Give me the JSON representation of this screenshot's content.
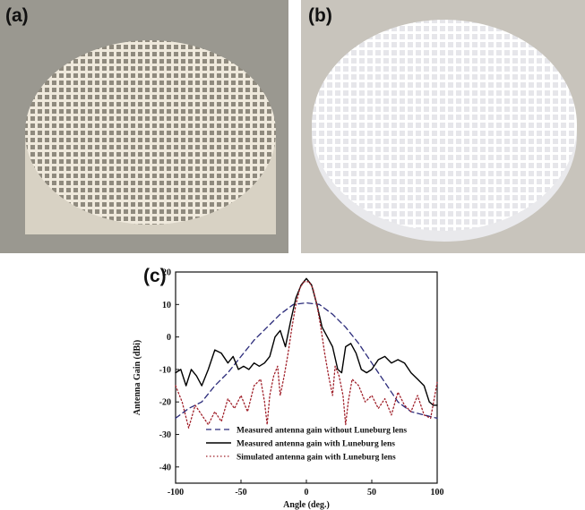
{
  "panels": {
    "a": {
      "label": "(a)"
    },
    "b": {
      "label": "(b)"
    },
    "c": {
      "label": "(c)"
    }
  },
  "colors": {
    "photo_a_background": "#9a9890",
    "photo_a_lattice": "#efe9dc",
    "photo_b_background": "#c8c4bc",
    "photo_b_lattice": "#ffffff",
    "measured_without_lens": "#2b2b7a",
    "measured_with_lens": "#000000",
    "simulated_with_lens": "#a0202a"
  },
  "chart_data": {
    "type": "line",
    "xlabel": "Angle (deg.)",
    "ylabel": "Antenna Gain (dBi)",
    "xlim": [
      -100,
      100
    ],
    "ylim": [
      -45,
      20
    ],
    "x_ticks": [
      -100,
      -50,
      0,
      50,
      100
    ],
    "y_ticks": [
      20,
      10,
      0,
      -10,
      -20,
      -30,
      -40
    ],
    "legend_position": "bottom-center",
    "series": [
      {
        "name": "Measured antenna gain without Luneburg lens",
        "style": "dashed",
        "x": [
          -100,
          -90,
          -80,
          -70,
          -60,
          -50,
          -40,
          -30,
          -20,
          -10,
          0,
          10,
          20,
          30,
          40,
          50,
          60,
          70,
          80,
          90,
          100
        ],
        "y": [
          -25,
          -22,
          -20,
          -15,
          -11,
          -6,
          -1,
          3,
          7,
          10,
          10.5,
          10,
          7,
          3,
          -2,
          -8,
          -14,
          -20,
          -23,
          -24,
          -25
        ]
      },
      {
        "name": "Measured antenna gain with Luneburg lens",
        "style": "solid",
        "x": [
          -100,
          -96,
          -92,
          -88,
          -84,
          -80,
          -75,
          -70,
          -65,
          -60,
          -56,
          -52,
          -48,
          -44,
          -40,
          -36,
          -32,
          -28,
          -24,
          -20,
          -16,
          -12,
          -8,
          -4,
          0,
          4,
          8,
          12,
          16,
          20,
          24,
          27,
          30,
          34,
          38,
          42,
          46,
          50,
          55,
          60,
          65,
          70,
          75,
          80,
          85,
          90,
          94,
          97,
          100
        ],
        "y": [
          -11,
          -10,
          -15,
          -10,
          -12,
          -15,
          -10,
          -4,
          -5,
          -8,
          -6,
          -10,
          -9,
          -10,
          -8,
          -9,
          -8,
          -6,
          0,
          2,
          -3,
          5,
          12,
          16,
          18,
          16,
          10,
          3,
          0,
          -3,
          -10,
          -11,
          -3,
          -2,
          -5,
          -10,
          -11,
          -10,
          -7,
          -6,
          -8,
          -7,
          -8,
          -11,
          -13,
          -15,
          -20,
          -21,
          -21
        ]
      },
      {
        "name": "Simulated antenna gain with Luneburg lens",
        "style": "dotted",
        "x": [
          -100,
          -95,
          -90,
          -85,
          -80,
          -75,
          -70,
          -65,
          -60,
          -55,
          -50,
          -45,
          -40,
          -35,
          -32,
          -30,
          -28,
          -25,
          -22,
          -20,
          -17,
          -14,
          -11,
          -8,
          -5,
          -2,
          0,
          2,
          5,
          8,
          11,
          14,
          17,
          20,
          22,
          25,
          28,
          30,
          32,
          35,
          40,
          45,
          50,
          55,
          60,
          65,
          70,
          75,
          80,
          85,
          90,
          95,
          100
        ],
        "y": [
          -15,
          -20,
          -28,
          -21,
          -24,
          -27,
          -23,
          -26,
          -19,
          -22,
          -18,
          -23,
          -15,
          -13,
          -20,
          -27,
          -18,
          -12,
          -9,
          -18,
          -12,
          -5,
          3,
          10,
          15,
          17,
          17,
          17,
          15,
          10,
          3,
          -5,
          -12,
          -18,
          -9,
          -12,
          -18,
          -27,
          -20,
          -13,
          -15,
          -20,
          -18,
          -22,
          -19,
          -24,
          -17,
          -21,
          -23,
          -18,
          -24,
          -25,
          -14
        ]
      }
    ]
  }
}
